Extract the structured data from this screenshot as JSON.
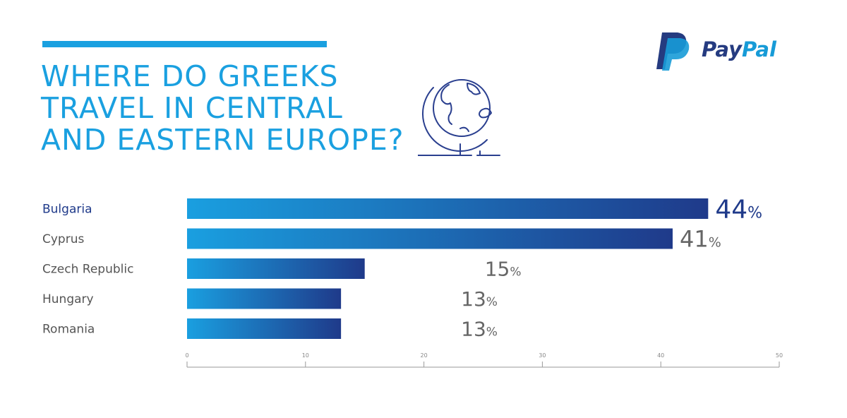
{
  "title": {
    "lines": [
      "WHERE DO GREEKS",
      "TRAVEL IN CENTRAL",
      "AND EASTERN EUROPE?"
    ],
    "color": "#1aa0e0"
  },
  "brand": {
    "logo_text_1": "Pay",
    "logo_text_2": "Pal",
    "dark_blue": "#253b80",
    "light_blue": "#179bd7"
  },
  "icons": {
    "globe": "globe-icon",
    "logo": "paypal-logo-icon"
  },
  "chart_data": {
    "type": "bar",
    "orientation": "horizontal",
    "categories": [
      "Bulgaria",
      "Cyprus",
      "Czech Republic",
      "Hungary",
      "Romania"
    ],
    "values": [
      44,
      41,
      15,
      13,
      13
    ],
    "value_labels": [
      "44",
      "41",
      "15",
      "13",
      "13"
    ],
    "unit": "%",
    "xlim": [
      0,
      50
    ],
    "x_ticks": [
      0,
      10,
      20,
      30,
      40,
      50
    ],
    "grid": false,
    "legend": "none",
    "bar_gradient": [
      "#1a9fe0",
      "#1f3a8a"
    ],
    "label_colors": {
      "highlight": "#1f3a8a",
      "default": "#555555",
      "value": "#666666",
      "top_value": "#1f3a8a"
    }
  }
}
